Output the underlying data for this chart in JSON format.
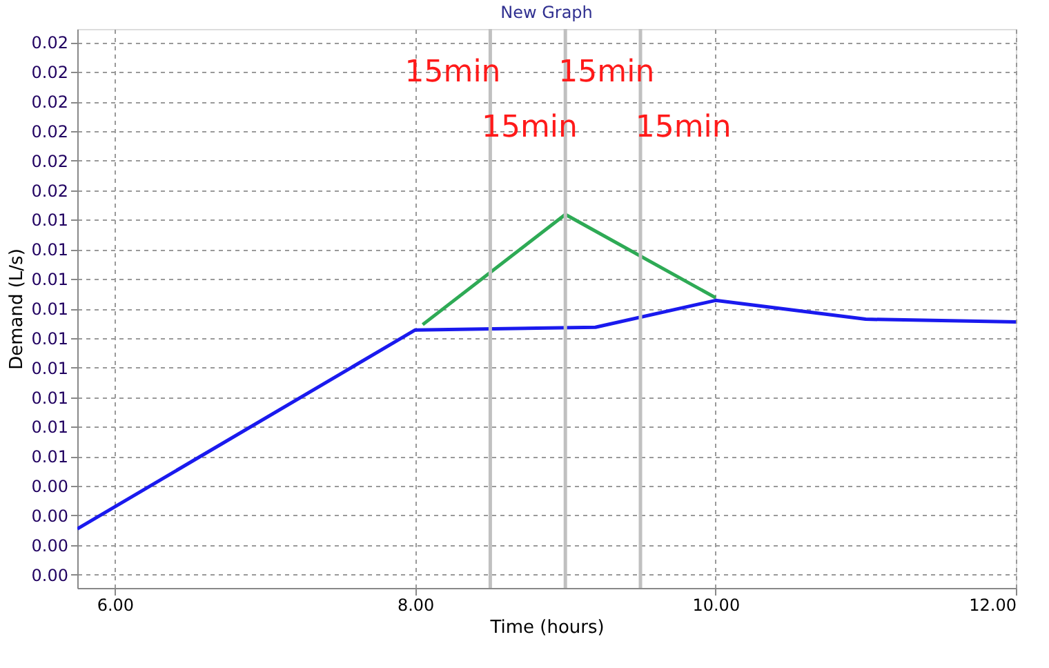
{
  "chart_data": {
    "type": "line",
    "title": "New Graph",
    "xlabel": "Time (hours)",
    "ylabel": "Demand (L/s)",
    "xlim": [
      5.75,
      12
    ],
    "xticks": [
      {
        "value": 6,
        "label": "6.00"
      },
      {
        "value": 8,
        "label": "8.00"
      },
      {
        "value": 10,
        "label": "10.00"
      },
      {
        "value": 12,
        "label": "12.00"
      }
    ],
    "ylim": [
      0.0005,
      0.0213
    ],
    "yticks": [
      {
        "value": 0.001,
        "label": "0.00"
      },
      {
        "value": 0.0021,
        "label": "0.00"
      },
      {
        "value": 0.0032,
        "label": "0.00"
      },
      {
        "value": 0.0043,
        "label": "0.00"
      },
      {
        "value": 0.0054,
        "label": "0.01"
      },
      {
        "value": 0.0065,
        "label": "0.01"
      },
      {
        "value": 0.0076,
        "label": "0.01"
      },
      {
        "value": 0.0087,
        "label": "0.01"
      },
      {
        "value": 0.0098,
        "label": "0.01"
      },
      {
        "value": 0.0109,
        "label": "0.01"
      },
      {
        "value": 0.012,
        "label": "0.01"
      },
      {
        "value": 0.0131,
        "label": "0.01"
      },
      {
        "value": 0.0142,
        "label": "0.01"
      },
      {
        "value": 0.0153,
        "label": "0.02"
      },
      {
        "value": 0.0164,
        "label": "0.02"
      },
      {
        "value": 0.0175,
        "label": "0.02"
      },
      {
        "value": 0.0186,
        "label": "0.02"
      },
      {
        "value": 0.0197,
        "label": "0.02"
      },
      {
        "value": 0.0208,
        "label": "0.02"
      }
    ],
    "grid": true,
    "line_style": "solid",
    "series": [
      {
        "color": "#1a1aee",
        "x": [
          5.75,
          8,
          9.2,
          10,
          11,
          12
        ],
        "values": [
          0.0027,
          0.0101,
          0.0102,
          0.0112,
          0.0105,
          0.0104
        ]
      },
      {
        "color": "#2eaa55",
        "x": [
          8.05,
          9,
          10
        ],
        "values": [
          0.0103,
          0.0144,
          0.0113
        ]
      }
    ],
    "ref_lines": [
      {
        "axis": "x",
        "value": 8.5,
        "color": "#c0c0c0"
      },
      {
        "axis": "x",
        "value": 9,
        "color": "#c0c0c0"
      },
      {
        "axis": "x",
        "value": 9.5,
        "color": "#c0c0c0"
      }
    ],
    "annotations": [
      "15min",
      "15min",
      "15min",
      "15min"
    ]
  }
}
